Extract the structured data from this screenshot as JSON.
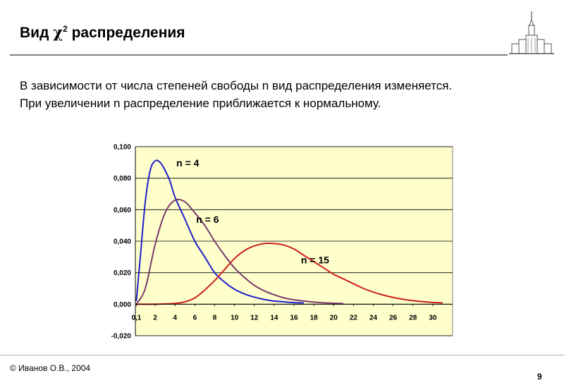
{
  "slide": {
    "title_main": "Вид ",
    "title_symbol": "χ",
    "title_sup": "2",
    "title_rest": " распределения",
    "intro_line1": "В зависимости от числа степеней свободы n вид распределения изменяется.",
    "intro_line2": "При увеличении n распределение приближается к нормальному.",
    "copyright": "© Иванов О.В., 2004",
    "page_number": "9"
  },
  "chart_data": {
    "type": "line",
    "x_ticks": [
      "0,1",
      "2",
      "4",
      "6",
      "8",
      "10",
      "12",
      "14",
      "16",
      "18",
      "20",
      "22",
      "24",
      "26",
      "28",
      "30"
    ],
    "y_ticks": [
      "-0,020",
      "0,000",
      "0,020",
      "0,040",
      "0,060",
      "0,080",
      "0,100"
    ],
    "ylim": [
      -0.02,
      0.1
    ],
    "xlim": [
      0,
      32
    ],
    "plot_background": "#ffffcc",
    "grid": true,
    "series": [
      {
        "name": "n = 4",
        "color": "#1f1fcc",
        "x": [
          0.1,
          0.5,
          1,
          1.5,
          2,
          2.5,
          3,
          3.5,
          4,
          5,
          6,
          7,
          8,
          9,
          10,
          11,
          12,
          13,
          14,
          15,
          16,
          17
        ],
        "y": [
          0.002,
          0.03,
          0.065,
          0.085,
          0.091,
          0.09,
          0.085,
          0.078,
          0.068,
          0.054,
          0.04,
          0.03,
          0.02,
          0.014,
          0.0095,
          0.0065,
          0.0045,
          0.003,
          0.002,
          0.0015,
          0.001,
          0.0008
        ]
      },
      {
        "name": "n = 6",
        "color": "#7a3a6a",
        "x": [
          0.1,
          1,
          2,
          3,
          4,
          5,
          6,
          7,
          8,
          9,
          10,
          11,
          12,
          13,
          14,
          15,
          16,
          17,
          18,
          19,
          20,
          21
        ],
        "y": [
          0.0,
          0.01,
          0.038,
          0.058,
          0.066,
          0.065,
          0.058,
          0.05,
          0.04,
          0.031,
          0.023,
          0.017,
          0.012,
          0.0085,
          0.006,
          0.004,
          0.0028,
          0.002,
          0.0013,
          0.0009,
          0.0006,
          0.0004
        ]
      },
      {
        "name": "n = 15",
        "color": "#cc1f1f",
        "x": [
          0.1,
          2,
          4,
          5,
          6,
          7,
          8,
          9,
          10,
          11,
          12,
          13,
          14,
          15,
          16,
          17,
          18,
          19,
          20,
          21,
          22,
          23,
          24,
          25,
          26,
          27,
          28,
          29,
          30,
          31
        ],
        "y": [
          0.0,
          0.0,
          0.0005,
          0.0015,
          0.004,
          0.009,
          0.015,
          0.022,
          0.029,
          0.034,
          0.037,
          0.0385,
          0.0385,
          0.0375,
          0.035,
          0.031,
          0.027,
          0.023,
          0.019,
          0.016,
          0.013,
          0.01,
          0.0077,
          0.0058,
          0.0043,
          0.0031,
          0.0022,
          0.0016,
          0.0011,
          0.0008
        ]
      }
    ]
  }
}
